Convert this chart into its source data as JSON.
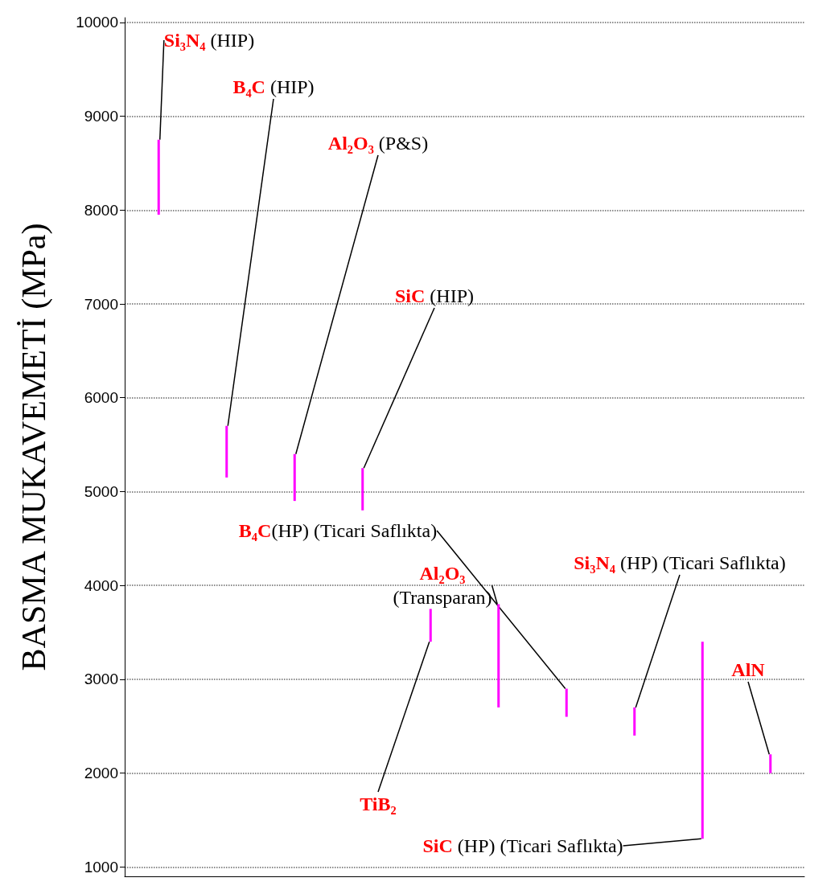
{
  "chart_data": {
    "type": "bar",
    "ylabel": "BASMA MUKAVEMETİ (MPa)",
    "categories": [
      null,
      null,
      null,
      null,
      null,
      null,
      null,
      null,
      null,
      null
    ],
    "annotations": [
      "Si₃N₄ (HIP)",
      "B₄C (HIP)",
      "Al₂O₃ (P&S)",
      "SiC (HIP)",
      "TiB₂",
      "Al₂O₃ (Transparan)",
      "B₄C(HP) (Ticari Saflıkta)",
      "Si₃N₄ (HP) (Ticari Saflıkta)",
      "SiC (HP) (Ticari Saflıkta)",
      "AlN"
    ],
    "values": [
      800,
      550,
      500,
      450,
      350,
      1100,
      300,
      300,
      2100,
      200
    ],
    "base": [
      7950,
      5150,
      4900,
      4800,
      3400,
      2700,
      2600,
      2400,
      1300,
      2000
    ],
    "color": "#ff00ff",
    "ylim": [
      900,
      10050
    ],
    "yticks": [
      1000,
      2000,
      3000,
      4000,
      5000,
      6000,
      7000,
      8000,
      9000,
      10000
    ],
    "grid": "y",
    "tick_labels": "y"
  }
}
